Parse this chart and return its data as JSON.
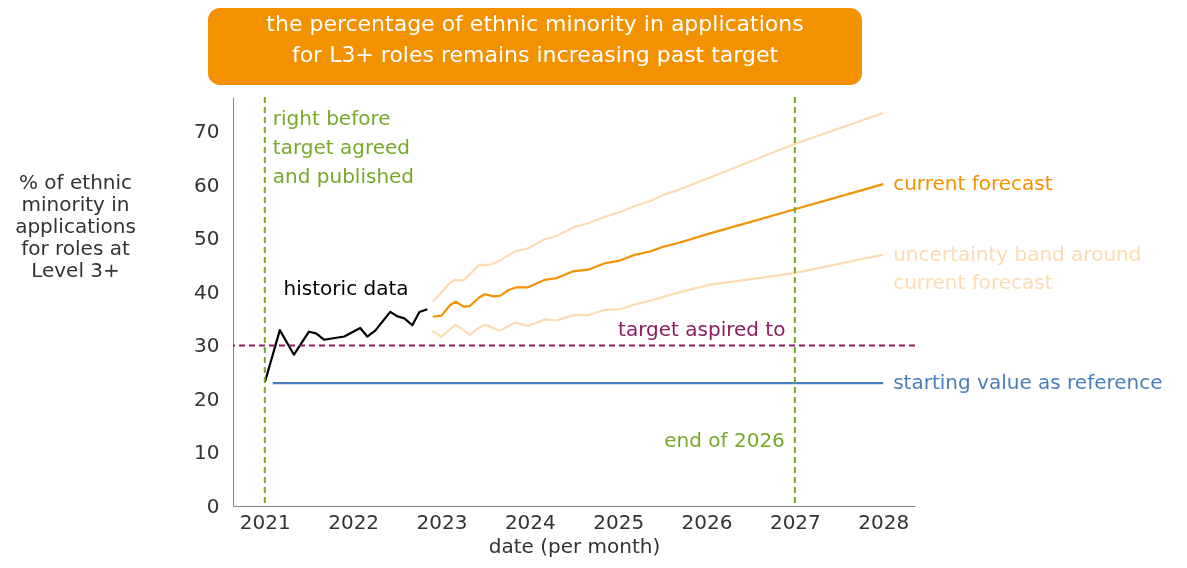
{
  "chart_data": {
    "type": "line",
    "title": "the percentage of ethnic minority in applications\nfor L3+ roles remains increasing past target",
    "xlabel": "date (per month)",
    "ylabel": "% of ethnic\nminority in\napplications\nfor roles at\nLevel 3+",
    "xlim": [
      2020.64,
      2028.36
    ],
    "xticks": [
      2021,
      2022,
      2023,
      2024,
      2025,
      2026,
      2027,
      2028
    ],
    "ylim": [
      0,
      76.5
    ],
    "yticks": [
      0,
      10,
      20,
      30,
      40,
      50,
      60,
      70
    ],
    "grid": false,
    "line_style": "solid",
    "marker": "none",
    "series": [
      {
        "name": "historic data",
        "color": "#000000",
        "x": [
          2021.0,
          2021.17,
          2021.33,
          2021.5,
          2021.58,
          2021.67,
          2021.9,
          2022.08,
          2022.16,
          2022.25,
          2022.42,
          2022.5,
          2022.58,
          2022.67,
          2022.75,
          2022.84
        ],
        "values": [
          23.1,
          32.9,
          28.3,
          32.6,
          32.3,
          31.1,
          31.7,
          33.3,
          31.7,
          32.8,
          36.3,
          35.5,
          35.1,
          33.8,
          36.3,
          36.8
        ]
      },
      {
        "name": "current forecast",
        "color": "#f39200",
        "x": [
          2022.9,
          2023.0,
          2023.1,
          2023.16,
          2023.25,
          2023.32,
          2023.42,
          2023.49,
          2023.59,
          2023.66,
          2023.76,
          2023.85,
          2023.98,
          2024.17,
          2024.3,
          2024.49,
          2024.66,
          2024.85,
          2025.02,
          2025.19,
          2025.36,
          2025.51,
          2025.68,
          2026.04,
          2026.98,
          2028.0
        ],
        "values": [
          35.4,
          35.6,
          37.6,
          38.2,
          37.3,
          37.4,
          38.9,
          39.6,
          39.2,
          39.3,
          40.4,
          40.9,
          40.9,
          42.3,
          42.6,
          43.9,
          44.2,
          45.4,
          45.9,
          47.0,
          47.6,
          48.5,
          49.2,
          51.0,
          55.4,
          60.2
        ]
      },
      {
        "color": "#fcdcb2",
        "x": [
          2022.9,
          2023.1,
          2023.16,
          2023.25,
          2023.42,
          2023.57,
          2023.66,
          2023.83,
          2023.98,
          2024.17,
          2024.3,
          2024.49,
          2024.66,
          2024.85,
          2025.02,
          2025.19,
          2025.36,
          2025.51,
          2025.68,
          2026.98,
          2028.0
        ],
        "values": [
          38.2,
          41.8,
          42.3,
          42.2,
          45.0,
          45.2,
          45.9,
          47.6,
          48.2,
          49.9,
          50.5,
          52.1,
          52.9,
          54.1,
          55.0,
          56.1,
          57.0,
          58.2,
          59.1,
          67.6,
          73.5
        ]
      },
      {
        "name": "uncertainty band around\ncurrent forecast",
        "color": "#fcdcb2",
        "x": [
          2022.9,
          2023.0,
          2023.1,
          2023.16,
          2023.25,
          2023.32,
          2023.42,
          2023.49,
          2023.66,
          2023.83,
          2023.98,
          2024.17,
          2024.3,
          2024.49,
          2024.66,
          2024.85,
          2025.02,
          2025.19,
          2025.36,
          2025.68,
          2026.04,
          2026.98,
          2028.0
        ],
        "values": [
          32.8,
          31.6,
          33.1,
          33.9,
          32.9,
          32.0,
          33.3,
          33.9,
          32.8,
          34.3,
          33.7,
          34.9,
          34.7,
          35.7,
          35.7,
          36.7,
          36.8,
          37.7,
          38.4,
          39.9,
          41.4,
          43.5,
          47.0
        ]
      },
      {
        "name": "starting value as reference",
        "color": "#4a7ebb",
        "x": [
          2021.09,
          2028.0
        ],
        "values": [
          23,
          23
        ]
      }
    ],
    "ref_lines": [
      {
        "axis": "y",
        "value": 30,
        "label": "target aspired to",
        "color": "#8b1c62",
        "line_style": "dashed"
      },
      {
        "axis": "x",
        "value": 2021,
        "label": "right before\ntarget agreed\nand published",
        "color": "#77a82a",
        "line_style": "dashed"
      },
      {
        "axis": "x",
        "value": 2027,
        "label": "end of 2026",
        "color": "#77a82a",
        "line_style": "dashed"
      }
    ]
  }
}
